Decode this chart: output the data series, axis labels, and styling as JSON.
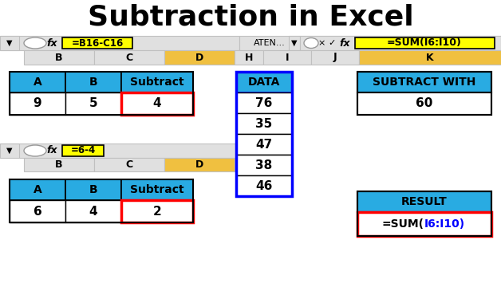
{
  "title": "Subtraction in Excel",
  "title_fontsize": 26,
  "title_fontweight": "bold",
  "bg_color": "#ffffff",
  "cyan": "#29ABE2",
  "yellow": "#FFFF00",
  "yellow2": "#F0C040",
  "red": "#FF0000",
  "blue": "#0000FF",
  "gray_bar": "#C0C0C0",
  "light_gray": "#E0E0E0",
  "mid_gray": "#D0D0D0",
  "black": "#000000",
  "white": "#FFFFFF",
  "formula_bar1_text": "=B16-C16",
  "formula_bar2_text": "=6-4",
  "formula_bar_sum": "=SUM(I6:I10)",
  "formula_bar_aten": "ATEN...",
  "col_b": "B",
  "col_c": "C",
  "col_d": "D",
  "col_h": "H",
  "col_i": "I",
  "col_j": "J",
  "col_k": "K",
  "table1_headers": [
    "A",
    "B",
    "Subtract"
  ],
  "table1_row": [
    "9",
    "5",
    "4"
  ],
  "table2_headers": [
    "A",
    "B",
    "Subtract"
  ],
  "table2_row": [
    "6",
    "4",
    "2"
  ],
  "data_header": "DATA",
  "data_values": [
    "76",
    "35",
    "47",
    "38",
    "46"
  ],
  "subtract_with_label": "SUBTRACT WITH",
  "subtract_with_value": "60",
  "result_label": "RESULT",
  "result_formula_prefix": "=SUM(",
  "result_formula_mid": "I6:I10",
  "result_formula_suffix": ")"
}
